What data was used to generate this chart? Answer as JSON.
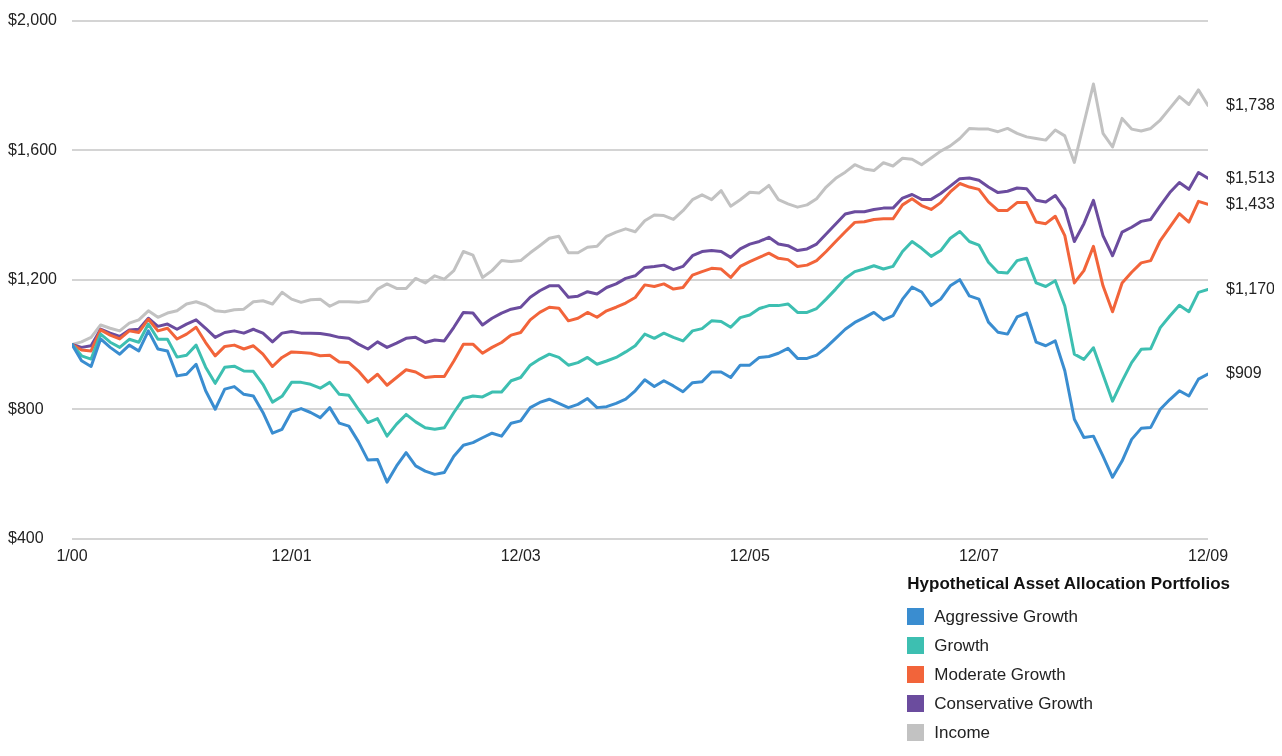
{
  "chart_data": {
    "type": "line",
    "x": [
      "2000-01",
      "2000-02",
      "2000-03",
      "2000-04",
      "2000-05",
      "2000-06",
      "2000-07",
      "2000-08",
      "2000-09",
      "2000-10",
      "2000-11",
      "2000-12",
      "2001-01",
      "2001-02",
      "2001-03",
      "2001-04",
      "2001-05",
      "2001-06",
      "2001-07",
      "2001-08",
      "2001-09",
      "2001-10",
      "2001-11",
      "2001-12",
      "2002-01",
      "2002-02",
      "2002-03",
      "2002-04",
      "2002-05",
      "2002-06",
      "2002-07",
      "2002-08",
      "2002-09",
      "2002-10",
      "2002-11",
      "2002-12",
      "2003-01",
      "2003-02",
      "2003-03",
      "2003-04",
      "2003-05",
      "2003-06",
      "2003-07",
      "2003-08",
      "2003-09",
      "2003-10",
      "2003-11",
      "2003-12",
      "2004-01",
      "2004-02",
      "2004-03",
      "2004-04",
      "2004-05",
      "2004-06",
      "2004-07",
      "2004-08",
      "2004-09",
      "2004-10",
      "2004-11",
      "2004-12",
      "2005-01",
      "2005-02",
      "2005-03",
      "2005-04",
      "2005-05",
      "2005-06",
      "2005-07",
      "2005-08",
      "2005-09",
      "2005-10",
      "2005-11",
      "2005-12",
      "2006-01",
      "2006-02",
      "2006-03",
      "2006-04",
      "2006-05",
      "2006-06",
      "2006-07",
      "2006-08",
      "2006-09",
      "2006-10",
      "2006-11",
      "2006-12",
      "2007-01",
      "2007-02",
      "2007-03",
      "2007-04",
      "2007-05",
      "2007-06",
      "2007-07",
      "2007-08",
      "2007-09",
      "2007-10",
      "2007-11",
      "2007-12",
      "2008-01",
      "2008-02",
      "2008-03",
      "2008-04",
      "2008-05",
      "2008-06",
      "2008-07",
      "2008-08",
      "2008-09",
      "2008-10",
      "2008-11",
      "2008-12",
      "2009-01",
      "2009-02",
      "2009-03",
      "2009-04",
      "2009-05",
      "2009-06",
      "2009-07",
      "2009-08",
      "2009-09",
      "2009-10",
      "2009-11",
      "2009-12"
    ],
    "series": [
      {
        "name": "Aggressive Growth",
        "color": "#3a8dd0",
        "values": [
          1000,
          950,
          932,
          1017,
          991,
          970,
          998,
          980,
          1042,
          986,
          980,
          903,
          908,
          939,
          857,
          800,
          862,
          870,
          846,
          841,
          790,
          726,
          738,
          792,
          802,
          790,
          774,
          805,
          757,
          748,
          700,
          643,
          645,
          575,
          625,
          666,
          625,
          609,
          599,
          605,
          655,
          689,
          697,
          712,
          726,
          717,
          757,
          764,
          805,
          821,
          831,
          818,
          805,
          815,
          833,
          805,
          808,
          818,
          831,
          857,
          891,
          870,
          888,
          872,
          854,
          882,
          885,
          915,
          915,
          898,
          936,
          936,
          960,
          963,
          973,
          988,
          957,
          957,
          967,
          991,
          1019,
          1047,
          1068,
          1083,
          1099,
          1076,
          1089,
          1140,
          1177,
          1162,
          1120,
          1140,
          1181,
          1200,
          1150,
          1140,
          1069,
          1038,
          1032,
          1085,
          1097,
          1007,
          996,
          1011,
          919,
          769,
          713,
          717,
          655,
          590,
          640,
          707,
          741,
          744,
          800,
          830,
          857,
          841,
          893,
          909
        ]
      },
      {
        "name": "Growth",
        "color": "#3dbfb1",
        "values": [
          1000,
          965,
          955,
          1032,
          1007,
          991,
          1016,
          1007,
          1063,
          1016,
          1016,
          961,
          967,
          998,
          930,
          880,
          930,
          933,
          918,
          917,
          877,
          822,
          840,
          883,
          883,
          877,
          865,
          883,
          846,
          843,
          800,
          759,
          771,
          717,
          754,
          784,
          761,
          743,
          738,
          743,
          790,
          833,
          841,
          838,
          853,
          853,
          888,
          898,
          936,
          955,
          970,
          960,
          936,
          944,
          960,
          939,
          949,
          960,
          977,
          996,
          1032,
          1019,
          1035,
          1022,
          1011,
          1042,
          1049,
          1073,
          1071,
          1053,
          1083,
          1091,
          1111,
          1120,
          1120,
          1125,
          1099,
          1099,
          1111,
          1140,
          1171,
          1204,
          1225,
          1233,
          1243,
          1233,
          1241,
          1287,
          1318,
          1297,
          1272,
          1290,
          1328,
          1349,
          1318,
          1307,
          1254,
          1223,
          1221,
          1259,
          1266,
          1190,
          1179,
          1197,
          1119,
          970,
          954,
          990,
          907,
          825,
          887,
          944,
          985,
          987,
          1052,
          1088,
          1121,
          1101,
          1161,
          1170
        ]
      },
      {
        "name": "Moderate Growth",
        "color": "#f2643a",
        "values": [
          1000,
          983,
          980,
          1045,
          1029,
          1017,
          1042,
          1037,
          1078,
          1042,
          1050,
          1017,
          1032,
          1053,
          1006,
          965,
          994,
          998,
          986,
          996,
          970,
          932,
          960,
          977,
          975,
          973,
          965,
          967,
          946,
          944,
          918,
          884,
          908,
          874,
          898,
          922,
          915,
          898,
          901,
          901,
          949,
          1001,
          1001,
          973,
          991,
          1006,
          1029,
          1037,
          1076,
          1099,
          1115,
          1112,
          1073,
          1081,
          1099,
          1084,
          1104,
          1115,
          1128,
          1145,
          1184,
          1179,
          1187,
          1171,
          1176,
          1214,
          1225,
          1235,
          1233,
          1207,
          1241,
          1256,
          1269,
          1282,
          1266,
          1262,
          1241,
          1245,
          1259,
          1287,
          1318,
          1348,
          1377,
          1379,
          1386,
          1388,
          1388,
          1431,
          1450,
          1429,
          1417,
          1438,
          1471,
          1497,
          1486,
          1479,
          1440,
          1414,
          1414,
          1438,
          1438,
          1378,
          1373,
          1396,
          1336,
          1190,
          1228,
          1303,
          1181,
          1101,
          1190,
          1223,
          1252,
          1259,
          1321,
          1362,
          1404,
          1378,
          1442,
          1433
        ]
      },
      {
        "name": "Conservative Growth",
        "color": "#6b4c9e",
        "values": [
          1000,
          991,
          996,
          1047,
          1035,
          1025,
          1045,
          1047,
          1081,
          1056,
          1063,
          1047,
          1063,
          1076,
          1050,
          1022,
          1037,
          1042,
          1035,
          1047,
          1035,
          1008,
          1035,
          1040,
          1035,
          1035,
          1034,
          1029,
          1022,
          1019,
          1001,
          986,
          1008,
          991,
          1004,
          1019,
          1022,
          1006,
          1014,
          1011,
          1053,
          1099,
          1097,
          1060,
          1081,
          1097,
          1109,
          1115,
          1146,
          1166,
          1181,
          1181,
          1146,
          1149,
          1163,
          1156,
          1176,
          1187,
          1204,
          1212,
          1238,
          1241,
          1245,
          1231,
          1241,
          1274,
          1287,
          1290,
          1287,
          1269,
          1295,
          1310,
          1318,
          1331,
          1310,
          1305,
          1290,
          1295,
          1310,
          1341,
          1372,
          1403,
          1410,
          1410,
          1417,
          1421,
          1421,
          1452,
          1463,
          1448,
          1448,
          1466,
          1489,
          1512,
          1514,
          1507,
          1486,
          1469,
          1473,
          1483,
          1481,
          1445,
          1440,
          1460,
          1419,
          1318,
          1373,
          1445,
          1336,
          1274,
          1347,
          1362,
          1380,
          1386,
          1429,
          1469,
          1500,
          1479,
          1531,
          1513
        ]
      },
      {
        "name": "Income",
        "color": "#c2c2c2",
        "values": [
          1000,
          1008,
          1022,
          1060,
          1050,
          1042,
          1066,
          1076,
          1104,
          1084,
          1097,
          1104,
          1125,
          1132,
          1122,
          1104,
          1101,
          1107,
          1109,
          1132,
          1135,
          1125,
          1161,
          1140,
          1130,
          1138,
          1140,
          1118,
          1132,
          1132,
          1130,
          1135,
          1171,
          1187,
          1173,
          1173,
          1204,
          1190,
          1212,
          1202,
          1228,
          1287,
          1276,
          1207,
          1228,
          1259,
          1256,
          1259,
          1283,
          1305,
          1328,
          1334,
          1283,
          1283,
          1300,
          1303,
          1334,
          1347,
          1357,
          1348,
          1382,
          1400,
          1398,
          1386,
          1413,
          1447,
          1462,
          1447,
          1475,
          1427,
          1447,
          1470,
          1468,
          1491,
          1447,
          1434,
          1424,
          1431,
          1450,
          1486,
          1513,
          1532,
          1555,
          1542,
          1537,
          1561,
          1551,
          1575,
          1572,
          1555,
          1576,
          1597,
          1613,
          1636,
          1667,
          1665,
          1665,
          1657,
          1667,
          1652,
          1641,
          1636,
          1631,
          1662,
          1644,
          1562,
          1683,
          1804,
          1652,
          1610,
          1698,
          1665,
          1659,
          1667,
          1693,
          1729,
          1765,
          1741,
          1786,
          1738
        ]
      }
    ],
    "xlim": [
      "2000-01",
      "2009-12"
    ],
    "xticks": [
      {
        "value": "2000-01",
        "label": "1/00"
      },
      {
        "value": "2001-12",
        "label": "12/01"
      },
      {
        "value": "2003-12",
        "label": "12/03"
      },
      {
        "value": "2005-12",
        "label": "12/05"
      },
      {
        "value": "2007-12",
        "label": "12/07"
      },
      {
        "value": "2009-12",
        "label": "12/09"
      }
    ],
    "ylim": [
      400,
      2000
    ],
    "yticks": [
      {
        "value": 400,
        "label": "$400"
      },
      {
        "value": 800,
        "label": "$800"
      },
      {
        "value": 1200,
        "label": "$1,200"
      },
      {
        "value": 1600,
        "label": "$1,600"
      },
      {
        "value": 2000,
        "label": "$2,000"
      }
    ],
    "grid": "y",
    "marker": "none",
    "line_style": "solid",
    "legend": "bottom right",
    "legend_title": "Hypothetical Asset Allocation Portfolios",
    "annotations": [
      {
        "text": "$1,738",
        "x": "2009-12",
        "y": 1738
      },
      {
        "text": "$1,513",
        "x": "2009-12",
        "y": 1513
      },
      {
        "text": "$1,433",
        "x": "2009-12",
        "y": 1433
      },
      {
        "text": "$1,170",
        "x": "2009-12",
        "y": 1170
      },
      {
        "text": "$909",
        "x": "2009-12",
        "y": 909
      }
    ]
  }
}
